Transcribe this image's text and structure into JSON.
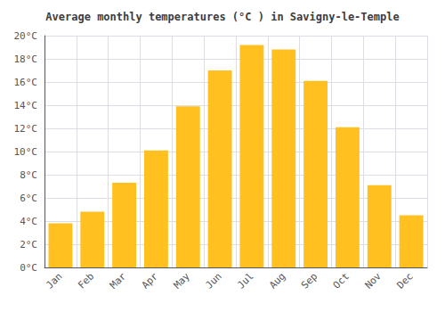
{
  "chart_data": {
    "type": "bar",
    "title": "Average monthly temperatures (°C ) in Savigny-le-Temple",
    "categories": [
      "Jan",
      "Feb",
      "Mar",
      "Apr",
      "May",
      "Jun",
      "Jul",
      "Aug",
      "Sep",
      "Oct",
      "Nov",
      "Dec"
    ],
    "values": [
      3.8,
      4.8,
      7.3,
      10.1,
      13.9,
      17.0,
      19.2,
      18.8,
      16.1,
      12.1,
      7.1,
      4.5
    ],
    "color": "#FFC020",
    "ylim": [
      0,
      20
    ],
    "yticks": [
      {
        "value": 0,
        "label": "0°C"
      },
      {
        "value": 2,
        "label": "2°C"
      },
      {
        "value": 4,
        "label": "4°C"
      },
      {
        "value": 6,
        "label": "6°C"
      },
      {
        "value": 8,
        "label": "8°C"
      },
      {
        "value": 10,
        "label": "10°C"
      },
      {
        "value": 12,
        "label": "12°C"
      },
      {
        "value": 14,
        "label": "14°C"
      },
      {
        "value": 16,
        "label": "16°C"
      },
      {
        "value": 18,
        "label": "18°C"
      },
      {
        "value": 20,
        "label": "20°C"
      }
    ],
    "grid": true
  }
}
